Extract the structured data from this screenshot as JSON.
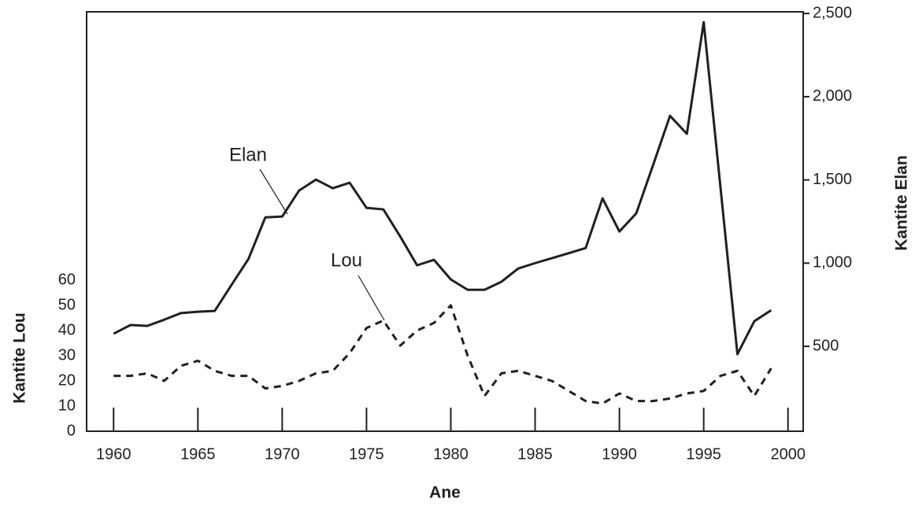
{
  "chart_data": {
    "type": "line",
    "xlabel": "Ane",
    "ylabel": "Kantite Lou",
    "y2label": "Kantite Elan",
    "annotations": [
      "Elan",
      "Lou"
    ],
    "x": [
      1960,
      1961,
      1962,
      1963,
      1964,
      1965,
      1966,
      1967,
      1968,
      1969,
      1970,
      1971,
      1972,
      1973,
      1974,
      1975,
      1976,
      1977,
      1978,
      1979,
      1980,
      1981,
      1982,
      1983,
      1984,
      1985,
      1986,
      1987,
      1988,
      1989,
      1990,
      1991,
      1992,
      1993,
      1994,
      1995,
      1996,
      1997,
      1998,
      1999
    ],
    "series": [
      {
        "name": "Elan",
        "axis": "y2",
        "color": "#231f20",
        "line_style": "solid",
        "values": [
          576,
          628,
          623,
          660,
          700,
          708,
          713,
          870,
          1025,
          1275,
          1280,
          1436,
          1502,
          1450,
          1483,
          1332,
          1323,
          1160,
          987,
          1020,
          902,
          840,
          840,
          888,
          968,
          1000,
          1030,
          1060,
          1091,
          1389,
          1190,
          1299,
          1590,
          1885,
          1777,
          2448,
          1450,
          453,
          651,
          717
        ]
      },
      {
        "name": "Lou",
        "color": "#231f20",
        "line_style": "dashed",
        "values": [
          22,
          22,
          23,
          20,
          26,
          28,
          24,
          22,
          22,
          17,
          18,
          20,
          23,
          24,
          31,
          41,
          44,
          34,
          40,
          43,
          50,
          30,
          14,
          23,
          24,
          22,
          20,
          16,
          12,
          11,
          15,
          12,
          12,
          13,
          15,
          16,
          22,
          24,
          14,
          25
        ]
      }
    ],
    "xlim": [
      1958.4,
      2000.9
    ],
    "xticks": [
      1960,
      1965,
      1970,
      1975,
      1980,
      1985,
      1990,
      1995,
      2000
    ],
    "ylim": [
      0,
      166.6
    ],
    "yticks": [
      0,
      10,
      20,
      30,
      40,
      50,
      60
    ],
    "y2lim": [
      -10,
      2510
    ],
    "y2ticks": [
      500,
      {
        "value": 1000,
        "label": "1,000"
      },
      {
        "value": 1500,
        "label": "1,500"
      },
      {
        "value": 2000,
        "label": "2,000"
      },
      {
        "value": 2500,
        "label": "2,500"
      }
    ]
  }
}
